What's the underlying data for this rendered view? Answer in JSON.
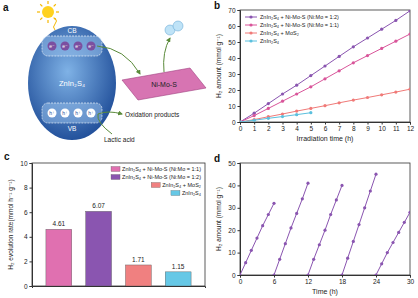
{
  "diagram": {
    "title": "a",
    "material": "ZnIn₂S₄",
    "cb": "CB",
    "vb": "VB",
    "electron": "e⁻",
    "hole": "h⁺",
    "cocatalyst": "Ni-Mo-S",
    "donor": "Lactic acid",
    "products": "Oxidation products"
  },
  "chart_data": [
    {
      "type": "line",
      "title": "b",
      "x_label": "Irradiation time (h)",
      "y_label": "H₂ amount (mmol g⁻¹)",
      "x": [
        0,
        1,
        2,
        3,
        4,
        5,
        6,
        7,
        8,
        9,
        10,
        11,
        12
      ],
      "xlim": [
        0,
        12
      ],
      "xticks": [
        0,
        1,
        2,
        3,
        4,
        5,
        6,
        7,
        8,
        9,
        10,
        11,
        12
      ],
      "ylim": [
        0,
        70
      ],
      "yticks": [
        0,
        10,
        20,
        30,
        40,
        50,
        60,
        70
      ],
      "legend": "upper left",
      "marker": "circle",
      "series": [
        {
          "name": "ZnIn₂S₄ + Ni-Mo-S (Ni:Mo = 1:2)",
          "color": "#8a55b0",
          "values": [
            0,
            5.5,
            11.5,
            17.5,
            23,
            29,
            35,
            41,
            47,
            52.5,
            58,
            63.5,
            69.5
          ]
        },
        {
          "name": "ZnIn₂S₄ + Ni-Mo-S (Ni:Mo = 1:1)",
          "color": "#d9559a",
          "values": [
            0,
            4,
            8.5,
            13,
            17.5,
            22,
            27,
            32,
            37,
            41.5,
            46,
            50.5,
            55
          ]
        },
        {
          "name": "ZnIn₂S₄ + MoS₂",
          "color": "#f07a78",
          "values": [
            0,
            1.5,
            3.3,
            5,
            6.8,
            8.5,
            10.2,
            12,
            13.7,
            15.3,
            17,
            18.7,
            20.5
          ]
        },
        {
          "name": "ZnIn₂S₄",
          "color": "#5bc0de",
          "values": [
            0,
            1.1,
            2.3,
            3.4,
            4.6,
            5.8,
            null,
            null,
            null,
            null,
            null,
            null,
            null
          ]
        }
      ]
    },
    {
      "type": "bar",
      "title": "c",
      "y_label": "H₂ evolution rate(mmol h⁻¹ g⁻¹)",
      "categories": [
        "ZnIn₂S₄ + Ni-Mo-S (Ni:Mo = 1:1)",
        "ZnIn₂S₄ + Ni-Mo-S (Ni:Mo = 1:2)",
        "ZnIn₂S₄ + MoS₂",
        "ZnIn₂S₄"
      ],
      "values": [
        4.61,
        6.07,
        1.71,
        1.15
      ],
      "colors": [
        "#e070b0",
        "#8a55b0",
        "#f08080",
        "#66c8e6"
      ],
      "ylim": [
        0,
        10
      ],
      "yticks": [
        0,
        2,
        4,
        6,
        8,
        10
      ],
      "data_labels": true,
      "legend": "upper right",
      "tick_labels": "y"
    },
    {
      "type": "line",
      "title": "d",
      "x_label": "Time (h)",
      "y_label": "H₂ amount (mmol g⁻¹)",
      "x": [
        0,
        1,
        2,
        3,
        4,
        5,
        6,
        6,
        6,
        7,
        8,
        9,
        10,
        11,
        12,
        12,
        12,
        13,
        14,
        15,
        16,
        17,
        18,
        18,
        18,
        19,
        20,
        21,
        22,
        23,
        24,
        24,
        24,
        25,
        26,
        27,
        28,
        29,
        30
      ],
      "xlim": [
        0,
        30
      ],
      "xticks": [
        0,
        6,
        12,
        18,
        24,
        30
      ],
      "ylim": [
        0,
        50
      ],
      "yticks": [
        0,
        10,
        20,
        30,
        40,
        50
      ],
      "marker": "circle",
      "series": [
        {
          "color": "#8a55b0",
          "values": [
            0,
            5.5,
            11,
            16.5,
            22,
            27,
            32,
            null,
            0,
            7,
            14,
            21,
            27.5,
            34,
            41,
            null,
            0,
            7,
            13.5,
            20,
            27,
            33.5,
            40,
            null,
            0,
            7.5,
            15,
            22.5,
            30,
            37.5,
            45,
            null,
            0,
            5,
            10,
            14.5,
            19,
            23.5,
            28
          ]
        }
      ]
    }
  ]
}
